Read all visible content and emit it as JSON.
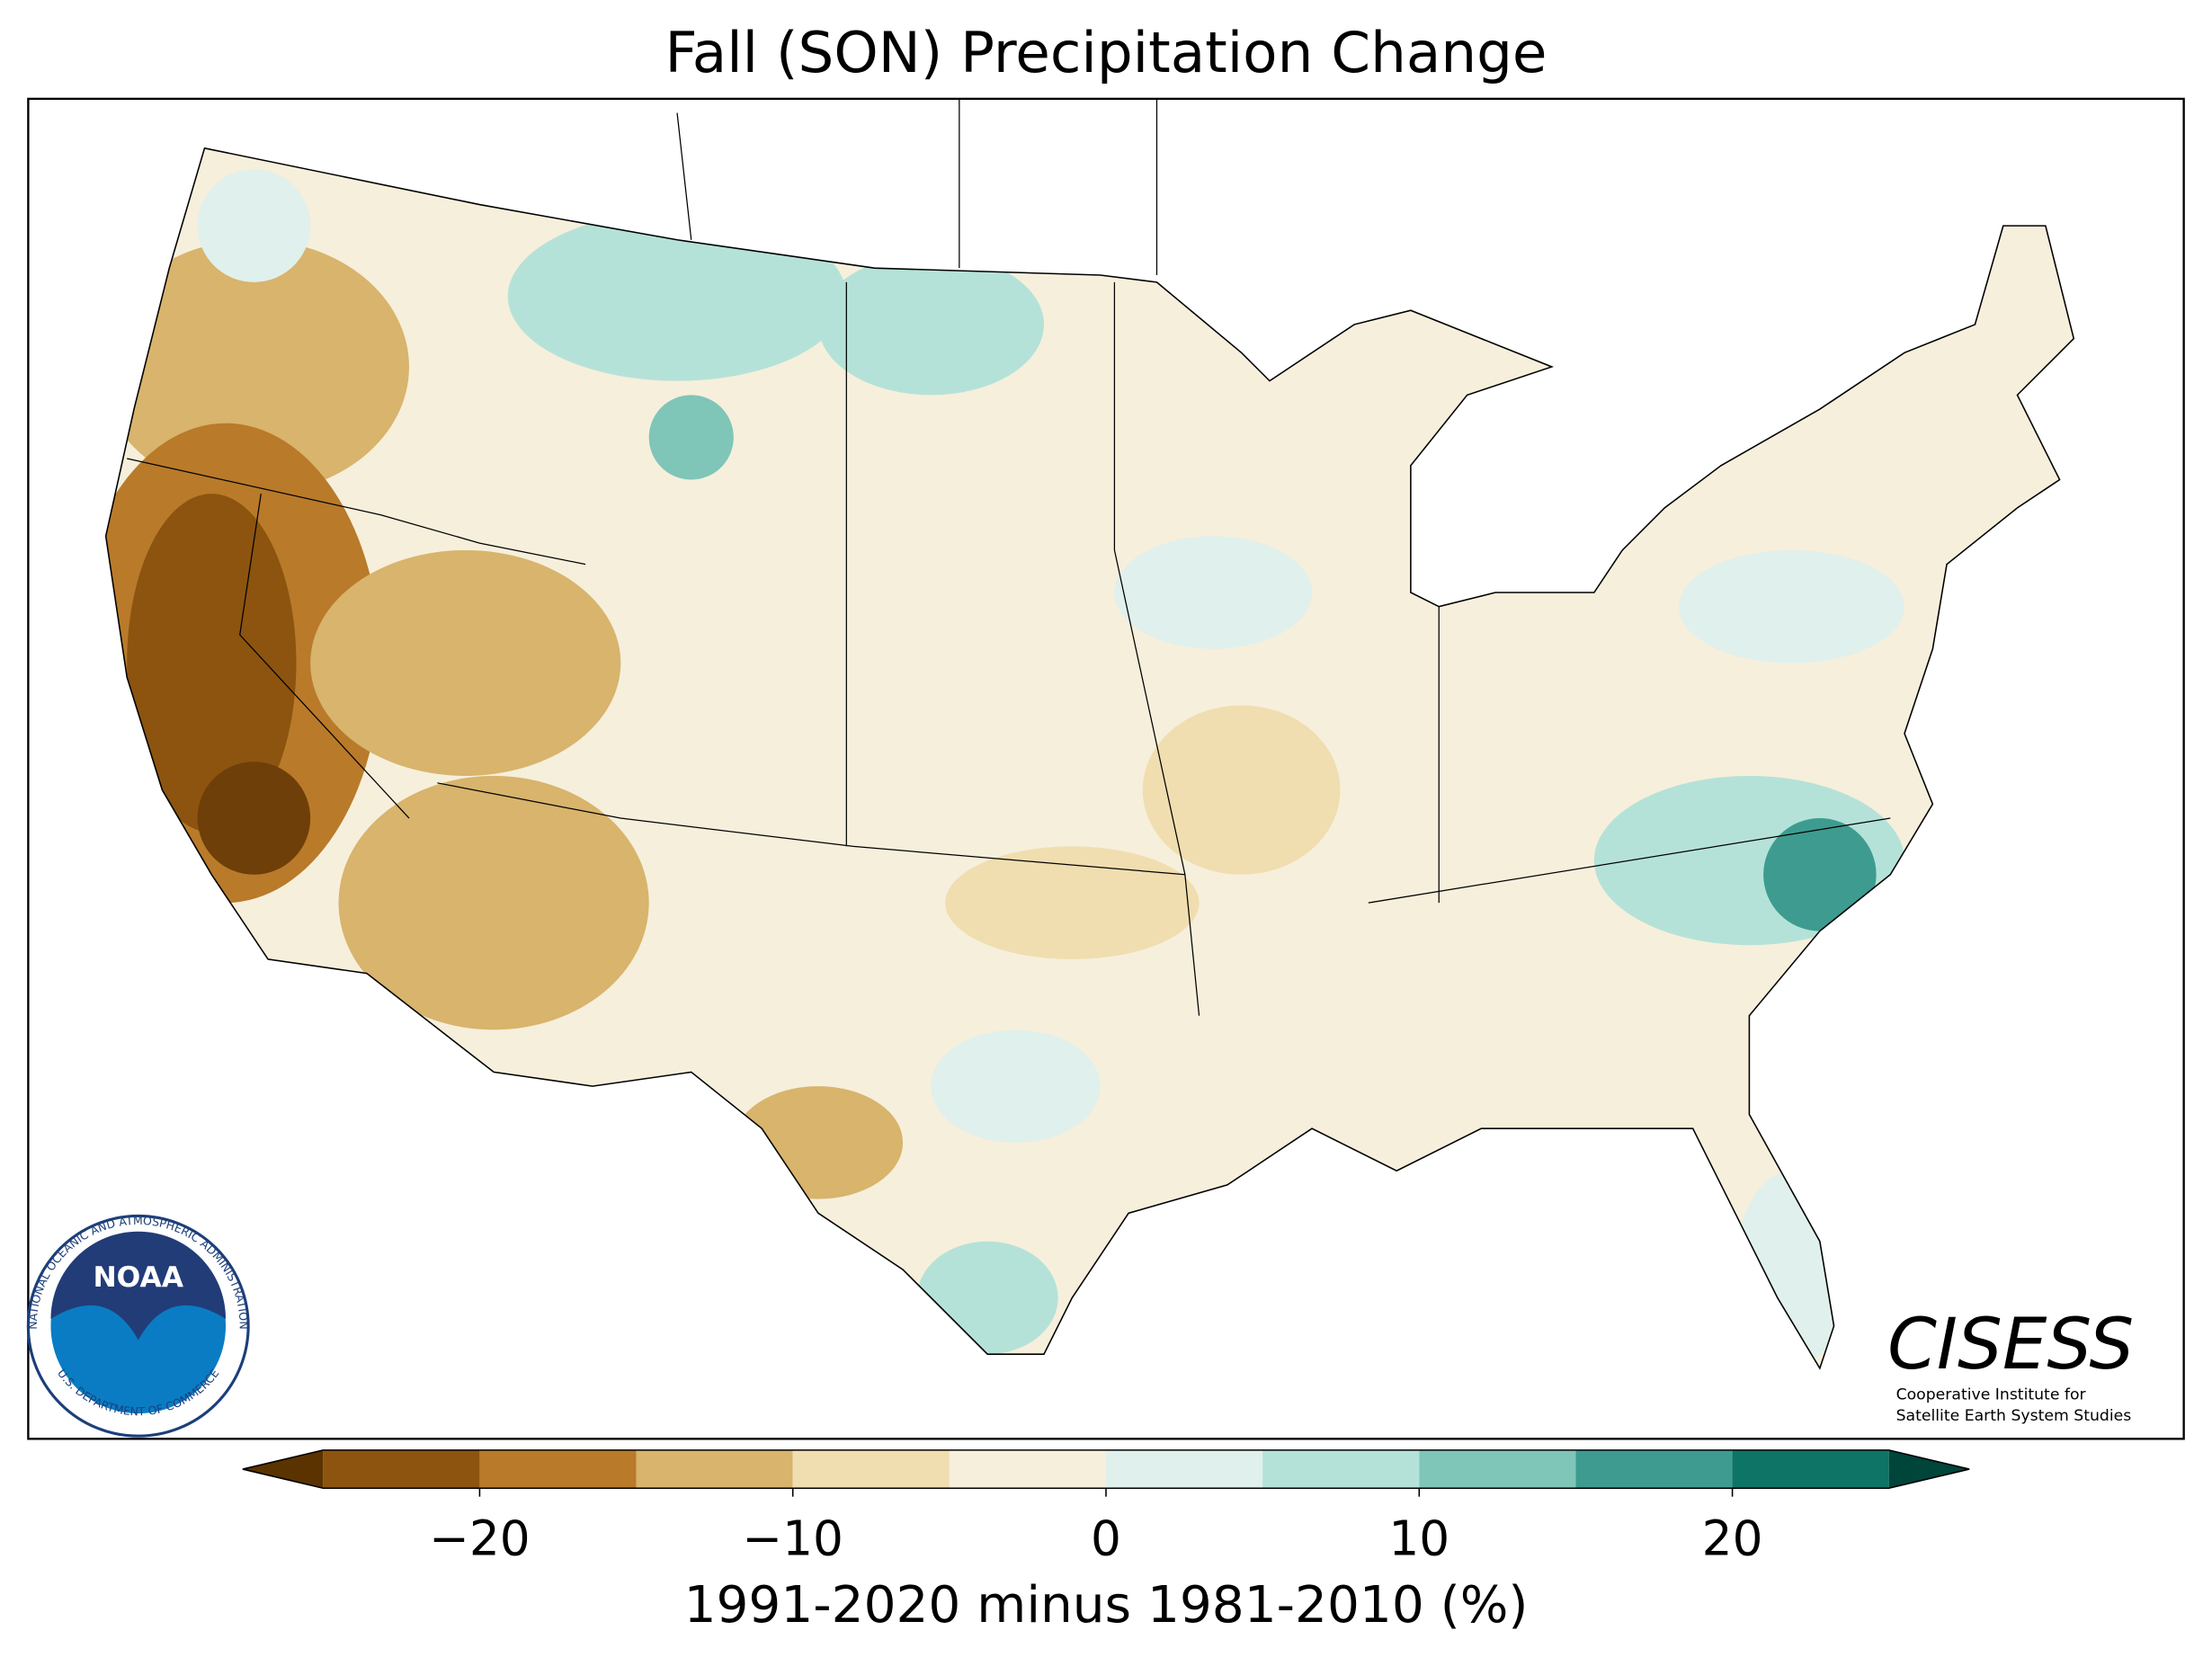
{
  "title": "Fall (SON) Precipitation Change",
  "colorbar": {
    "label": "1991-2020 minus 1981-2010 (%)",
    "bounds": [
      -25,
      -20,
      -15,
      -10,
      -5,
      0,
      5,
      10,
      15,
      20,
      25
    ],
    "colors": [
      "#8c540f",
      "#b97a2a",
      "#d8b46c",
      "#f0deb0",
      "#f6efdc",
      "#e0f0ec",
      "#b5e2d8",
      "#7fc6b8",
      "#3d9c8f",
      "#0e7466"
    ],
    "under_color": "#5b3300",
    "over_color": "#00453a",
    "ticks": [
      {
        "value": -20,
        "label": "−20"
      },
      {
        "value": -10,
        "label": "−10"
      },
      0,
      10,
      20
    ]
  },
  "logos": {
    "noaa": {
      "name": "NOAA",
      "ring_top": "NATIONAL OCEANIC AND ATMOSPHERIC ADMINISTRATION",
      "ring_bottom": "U.S. DEPARTMENT OF COMMERCE"
    },
    "cisess": {
      "name": "CISESS",
      "line1": "Cooperative Institute for",
      "line2": "Satellite Earth System Studies"
    }
  }
}
